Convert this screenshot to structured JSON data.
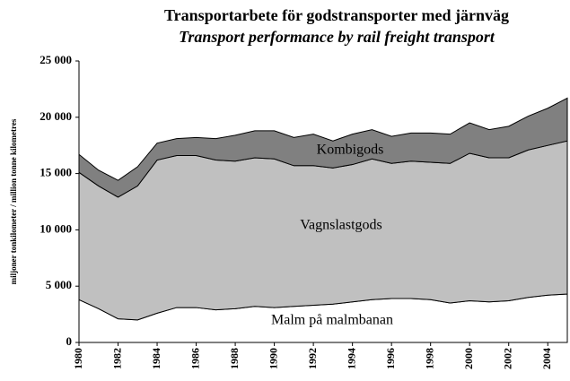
{
  "chart_data": {
    "type": "stacked_area",
    "title": "Transportarbete för godstransporter med järnväg",
    "subtitle": "Transport performance by rail freight transport",
    "y_label": "miljoner tonkilometer  /  million tonne kilometres",
    "x": [
      1980,
      1981,
      1982,
      1983,
      1984,
      1985,
      1986,
      1987,
      1988,
      1989,
      1990,
      1991,
      1992,
      1993,
      1994,
      1995,
      1996,
      1997,
      1998,
      1999,
      2000,
      2001,
      2002,
      2003,
      2004,
      2005
    ],
    "series": [
      {
        "name": "Malm på malmbanan",
        "color": "#ffffff",
        "values": [
          3800,
          3000,
          2100,
          2000,
          2600,
          3100,
          3100,
          2900,
          3000,
          3200,
          3100,
          3200,
          3300,
          3400,
          3600,
          3800,
          3900,
          3900,
          3800,
          3500,
          3700,
          3600,
          3700,
          4000,
          4200,
          4300
        ]
      },
      {
        "name": "Vagnslastgods",
        "color": "#c0c0c0",
        "values": [
          11300,
          10900,
          10800,
          11900,
          13600,
          13500,
          13500,
          13300,
          13100,
          13200,
          13200,
          12500,
          12400,
          12100,
          12200,
          12500,
          12000,
          12200,
          12200,
          12400,
          13100,
          12800,
          12700,
          13100,
          13300,
          13600
        ]
      },
      {
        "name": "Kombigods",
        "color": "#808080",
        "values": [
          1600,
          1400,
          1500,
          1700,
          1500,
          1500,
          1600,
          1900,
          2300,
          2400,
          2500,
          2500,
          2800,
          2400,
          2700,
          2600,
          2400,
          2500,
          2600,
          2600,
          2700,
          2500,
          2800,
          3000,
          3300,
          3800
        ]
      }
    ],
    "xlim": [
      1980,
      2005
    ],
    "xticks": [
      1980,
      1982,
      1984,
      1986,
      1988,
      1990,
      1992,
      1994,
      1996,
      1998,
      2000,
      2002,
      2004
    ],
    "ylim": [
      0,
      25000
    ],
    "yticks": [
      0,
      {
        "value": 5000,
        "label": "5 000"
      },
      {
        "value": 10000,
        "label": "10 000"
      },
      {
        "value": 15000,
        "label": "15 000"
      },
      {
        "value": 20000,
        "label": "20 000"
      },
      {
        "value": 25000,
        "label": "25 000"
      }
    ],
    "grid": false
  }
}
